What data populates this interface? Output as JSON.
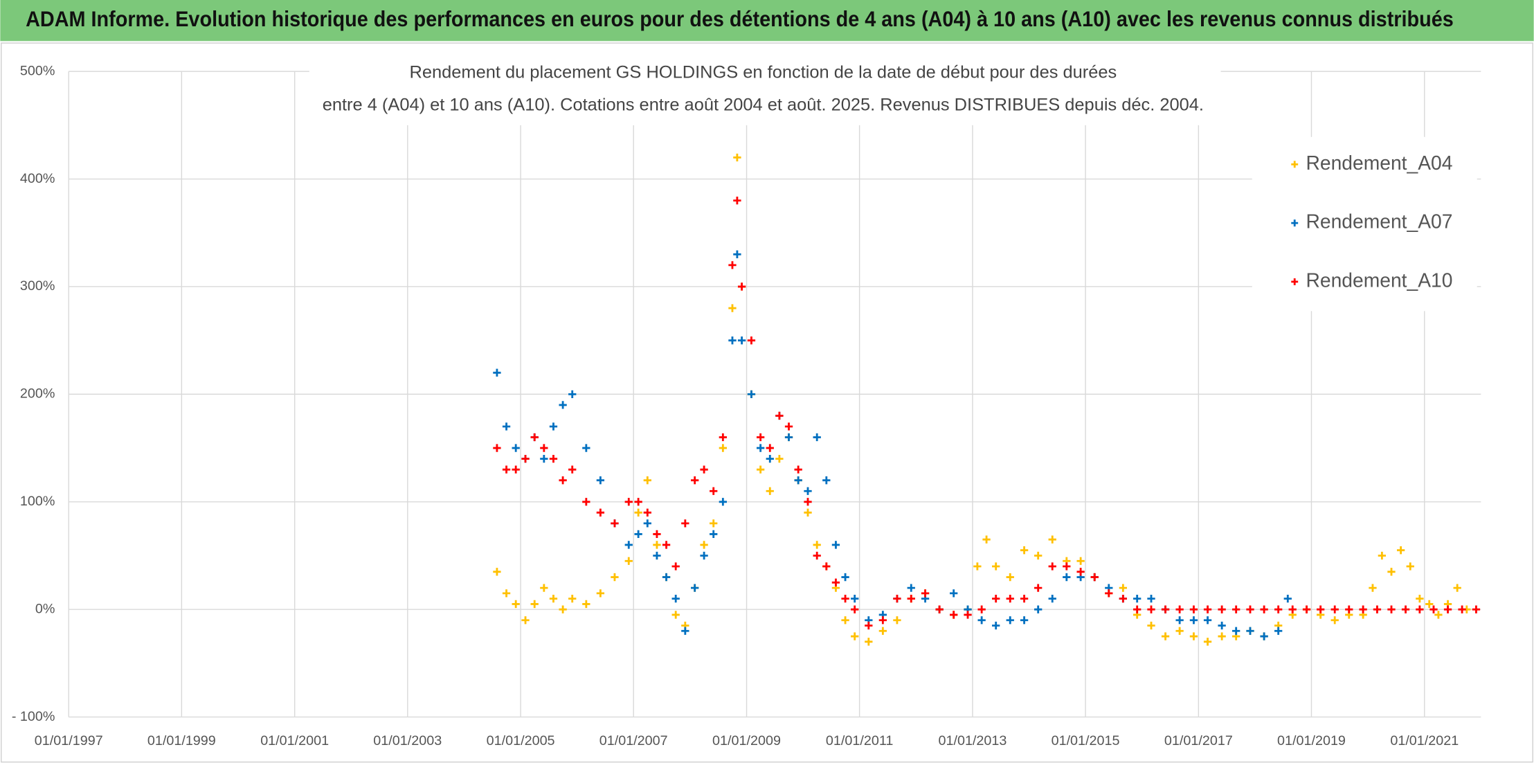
{
  "header": {
    "title": "ADAM Informe. Evolution historique des performances en euros pour des détentions de 4 ans (A04) à 10 ans (A10) avec les revenus connus distribués"
  },
  "chart_data": {
    "type": "scatter",
    "title": [
      "Rendement du placement GS HOLDINGS en fonction de la date de début pour des durées",
      "entre 4 (A04) et 10 ans (A10). Cotations entre août 2004 et août. 2025. Revenus DISTRIBUES depuis déc. 2004."
    ],
    "xlim": [
      "01/01/1997",
      "01/01/2022"
    ],
    "xticks": [
      "01/01/1997",
      "01/01/1999",
      "01/01/2001",
      "01/01/2003",
      "01/01/2005",
      "01/01/2007",
      "01/01/2009",
      "01/01/2011",
      "01/01/2013",
      "01/01/2015",
      "01/01/2017",
      "01/01/2019",
      "01/01/2021"
    ],
    "ylim": [
      -100,
      500
    ],
    "yticks": [
      {
        "value": -100,
        "label": "- 100%"
      },
      {
        "value": 0,
        "label": "0%"
      },
      {
        "value": 100,
        "label": "100%"
      },
      {
        "value": 200,
        "label": "200%"
      },
      {
        "value": 300,
        "label": "300%"
      },
      {
        "value": 400,
        "label": "400%"
      },
      {
        "value": 500,
        "label": "500%"
      }
    ],
    "grid": true,
    "legend": "upper right",
    "series": [
      {
        "name": "Rendement_A04",
        "color": "#ffc000",
        "x": [
          "01/08/2004",
          "01/10/2004",
          "01/12/2004",
          "01/02/2005",
          "01/04/2005",
          "01/06/2005",
          "01/08/2005",
          "01/10/2005",
          "01/12/2005",
          "01/03/2006",
          "01/06/2006",
          "01/09/2006",
          "01/12/2006",
          "01/02/2007",
          "01/04/2007",
          "01/06/2007",
          "01/08/2007",
          "01/10/2007",
          "01/12/2007",
          "01/02/2008",
          "01/04/2008",
          "01/06/2008",
          "01/08/2008",
          "01/10/2008",
          "01/11/2008",
          "01/12/2008",
          "01/02/2009",
          "01/04/2009",
          "01/06/2009",
          "01/08/2009",
          "01/10/2009",
          "01/12/2009",
          "01/02/2010",
          "01/04/2010",
          "01/06/2010",
          "01/08/2010",
          "01/10/2010",
          "01/12/2010",
          "01/03/2011",
          "01/06/2011",
          "01/09/2011",
          "01/12/2011",
          "01/03/2012",
          "01/06/2012",
          "01/09/2012",
          "01/12/2012",
          "01/02/2013",
          "01/04/2013",
          "01/06/2013",
          "01/09/2013",
          "01/12/2013",
          "01/03/2014",
          "01/06/2014",
          "01/09/2014",
          "01/12/2014",
          "01/03/2015",
          "01/06/2015",
          "01/09/2015",
          "01/12/2015",
          "01/03/2016",
          "01/06/2016",
          "01/09/2016",
          "01/12/2016",
          "01/03/2017",
          "01/06/2017",
          "01/09/2017",
          "01/12/2017",
          "01/03/2018",
          "01/06/2018",
          "01/09/2018",
          "01/12/2018",
          "01/03/2019",
          "01/06/2019",
          "01/09/2019",
          "01/12/2019",
          "01/02/2020",
          "01/04/2020",
          "01/06/2020",
          "01/08/2020",
          "01/10/2020",
          "01/12/2020",
          "01/02/2021",
          "01/04/2021",
          "01/06/2021",
          "01/08/2021",
          "01/10/2021"
        ],
        "values": [
          35,
          15,
          5,
          -10,
          5,
          20,
          10,
          0,
          10,
          5,
          15,
          30,
          45,
          90,
          120,
          60,
          30,
          -5,
          -15,
          20,
          60,
          80,
          150,
          280,
          420,
          300,
          200,
          130,
          110,
          140,
          160,
          120,
          90,
          60,
          40,
          20,
          -10,
          -25,
          -30,
          -20,
          -10,
          10,
          15,
          0,
          -5,
          0,
          40,
          65,
          40,
          30,
          55,
          50,
          65,
          45,
          45,
          30,
          15,
          20,
          -5,
          -15,
          -25,
          -20,
          -25,
          -30,
          -25,
          -25,
          -20,
          -25,
          -15,
          -5,
          0,
          -5,
          -10,
          -5,
          -5,
          20,
          50,
          35,
          55,
          40,
          10,
          5,
          -5,
          5,
          20,
          0
        ]
      },
      {
        "name": "Rendement_A07",
        "color": "#0070c0",
        "x": [
          "01/08/2004",
          "01/10/2004",
          "01/12/2004",
          "01/02/2005",
          "01/04/2005",
          "01/06/2005",
          "01/08/2005",
          "01/10/2005",
          "01/12/2005",
          "01/03/2006",
          "01/06/2006",
          "01/09/2006",
          "01/12/2006",
          "01/02/2007",
          "01/04/2007",
          "01/06/2007",
          "01/08/2007",
          "01/10/2007",
          "01/12/2007",
          "01/02/2008",
          "01/04/2008",
          "01/06/2008",
          "01/08/2008",
          "01/10/2008",
          "01/11/2008",
          "01/12/2008",
          "01/02/2009",
          "01/04/2009",
          "01/06/2009",
          "01/08/2009",
          "01/10/2009",
          "01/12/2009",
          "01/02/2010",
          "01/04/2010",
          "01/06/2010",
          "01/08/2010",
          "01/10/2010",
          "01/12/2010",
          "01/03/2011",
          "01/06/2011",
          "01/09/2011",
          "01/12/2011",
          "01/03/2012",
          "01/06/2012",
          "01/09/2012",
          "01/12/2012",
          "01/03/2013",
          "01/06/2013",
          "01/09/2013",
          "01/12/2013",
          "01/03/2014",
          "01/06/2014",
          "01/09/2014",
          "01/12/2014",
          "01/03/2015",
          "01/06/2015",
          "01/09/2015",
          "01/12/2015",
          "01/03/2016",
          "01/06/2016",
          "01/09/2016",
          "01/12/2016",
          "01/03/2017",
          "01/06/2017",
          "01/09/2017",
          "01/12/2017",
          "01/03/2018",
          "01/06/2018",
          "01/08/2018"
        ],
        "values": [
          220,
          170,
          150,
          140,
          160,
          140,
          170,
          190,
          200,
          150,
          120,
          80,
          60,
          70,
          80,
          50,
          30,
          10,
          -20,
          20,
          50,
          70,
          100,
          250,
          330,
          250,
          200,
          150,
          140,
          180,
          160,
          120,
          110,
          160,
          120,
          60,
          30,
          10,
          -10,
          -5,
          10,
          20,
          10,
          0,
          15,
          0,
          -10,
          -15,
          -10,
          -10,
          0,
          10,
          30,
          30,
          30,
          20,
          10,
          10,
          10,
          0,
          -10,
          -10,
          -10,
          -15,
          -20,
          -20,
          -25,
          -20,
          10
        ]
      },
      {
        "name": "Rendement_A10",
        "color": "#ff0000",
        "x": [
          "01/08/2004",
          "01/10/2004",
          "01/12/2004",
          "01/02/2005",
          "01/04/2005",
          "01/06/2005",
          "01/08/2005",
          "01/10/2005",
          "01/12/2005",
          "01/03/2006",
          "01/06/2006",
          "01/09/2006",
          "01/12/2006",
          "01/02/2007",
          "01/04/2007",
          "01/06/2007",
          "01/08/2007",
          "01/10/2007",
          "01/12/2007",
          "01/02/2008",
          "01/04/2008",
          "01/06/2008",
          "01/08/2008",
          "01/10/2008",
          "01/11/2008",
          "01/12/2008",
          "01/02/2009",
          "01/04/2009",
          "01/06/2009",
          "01/08/2009",
          "01/10/2009",
          "01/12/2009",
          "01/02/2010",
          "01/04/2010",
          "01/06/2010",
          "01/08/2010",
          "01/10/2010",
          "01/12/2010",
          "01/03/2011",
          "01/06/2011",
          "01/09/2011",
          "01/12/2011",
          "01/03/2012",
          "01/06/2012",
          "01/09/2012",
          "01/12/2012",
          "01/03/2013",
          "01/06/2013",
          "01/09/2013",
          "01/12/2013",
          "01/03/2014",
          "01/06/2014",
          "01/09/2014",
          "01/12/2014",
          "01/03/2015",
          "01/06/2015",
          "01/09/2015",
          "01/12/2015",
          "01/03/2016",
          "01/06/2016",
          "01/09/2016",
          "01/12/2016",
          "01/03/2017",
          "01/06/2017",
          "01/09/2017",
          "01/12/2017",
          "01/03/2018",
          "01/06/2018",
          "01/09/2018",
          "01/12/2018",
          "01/03/2019",
          "01/06/2019",
          "01/09/2019",
          "01/12/2019",
          "01/03/2020",
          "01/06/2020",
          "01/09/2020",
          "01/12/2020",
          "01/03/2021",
          "01/06/2021",
          "01/09/2021",
          "01/12/2021"
        ],
        "values": [
          150,
          130,
          130,
          140,
          160,
          150,
          140,
          120,
          130,
          100,
          90,
          80,
          100,
          100,
          90,
          70,
          60,
          40,
          80,
          120,
          130,
          110,
          160,
          320,
          380,
          300,
          250,
          160,
          150,
          180,
          170,
          130,
          100,
          50,
          40,
          25,
          10,
          0,
          -15,
          -10,
          10,
          10,
          15,
          0,
          -5,
          -5,
          0,
          10,
          10,
          10,
          20,
          40,
          40,
          35,
          30,
          15,
          10,
          0,
          0,
          0,
          0,
          0,
          0,
          0,
          0,
          0,
          0,
          0,
          0,
          0,
          0,
          0,
          0,
          0,
          0,
          0,
          0,
          0,
          0,
          0,
          0,
          0
        ]
      }
    ]
  }
}
